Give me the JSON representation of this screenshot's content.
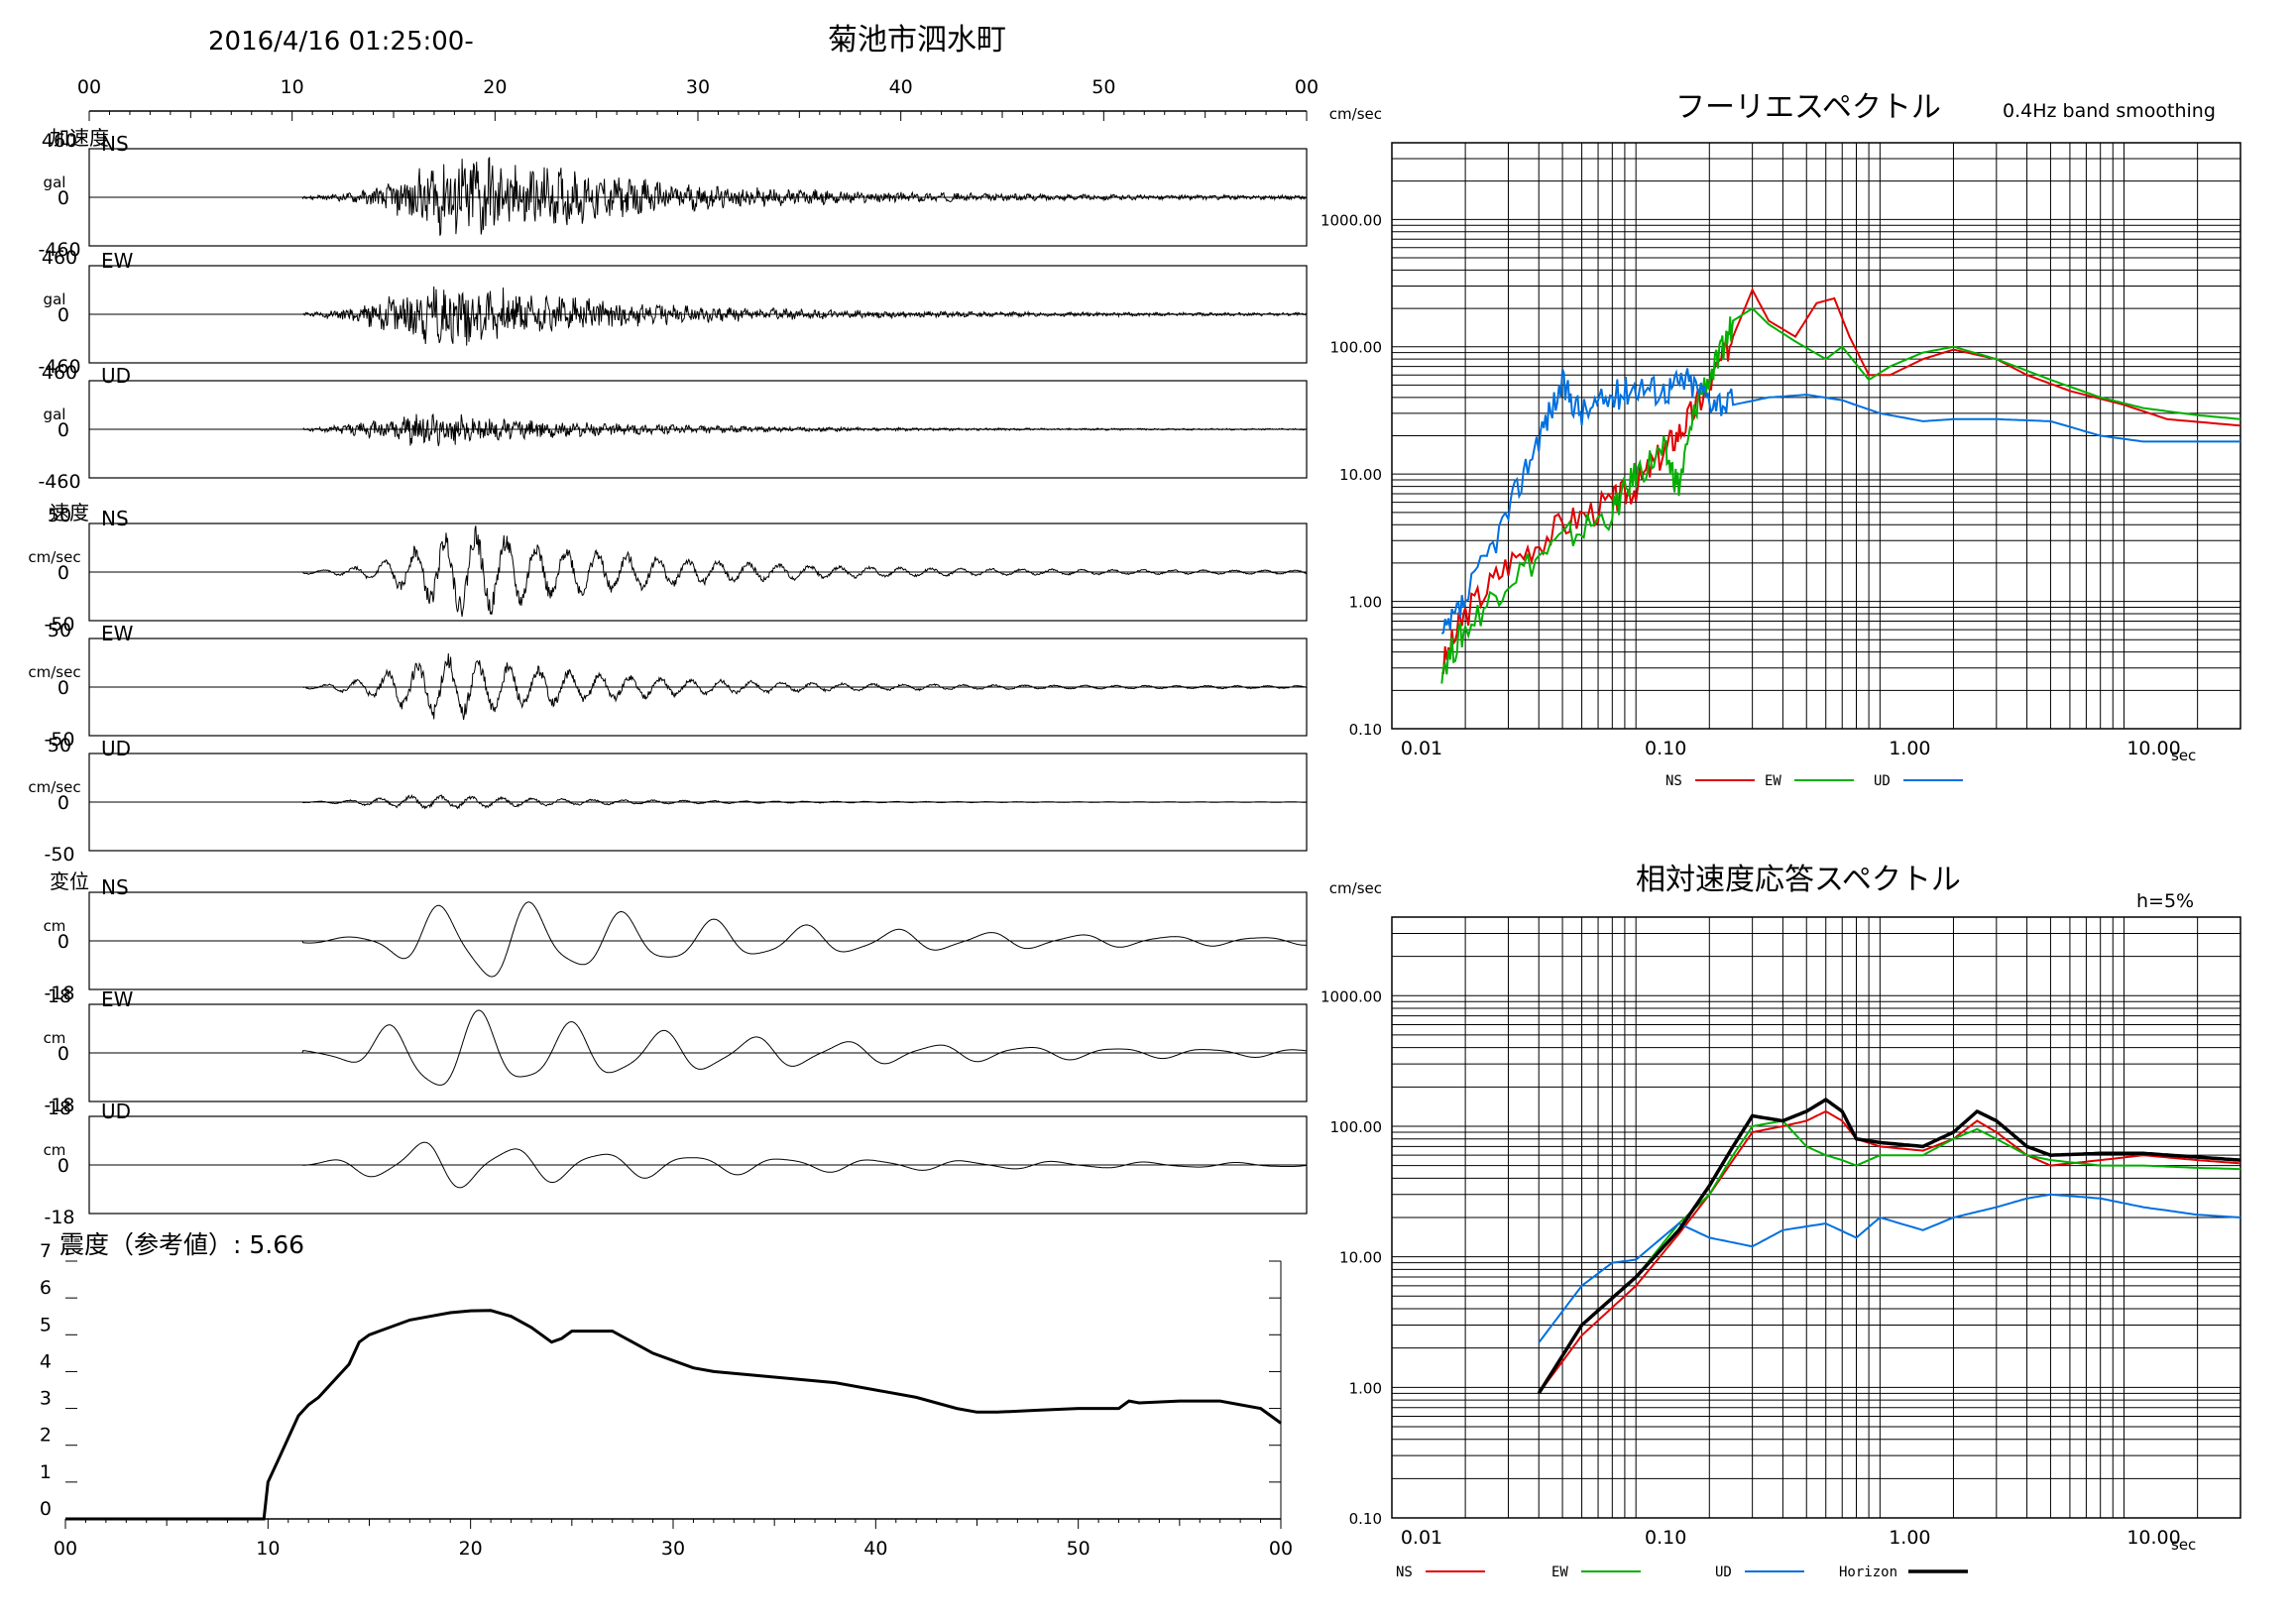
{
  "header": {
    "datetime": "2016/4/16 01:25:00-",
    "station": "菊池市泗水町"
  },
  "colors": {
    "ns": "#e00000",
    "ew": "#00b000",
    "ud": "#0070e0",
    "horizon": "#000000",
    "trace": "#000000"
  },
  "chart_data": [
    {
      "type": "line",
      "id": "waveforms",
      "time_ticks": [
        "00",
        "10",
        "20",
        "30",
        "40",
        "50",
        "00"
      ],
      "panels": [
        {
          "group": "加速度",
          "component": "NS",
          "unit": "gal",
          "ymax": "460",
          "yzero": "0",
          "ymin": "-460",
          "kind": "acc",
          "peak_time": 19.0,
          "amp": 0.95,
          "seed": 11
        },
        {
          "group": "",
          "component": "EW",
          "unit": "gal",
          "ymax": "460",
          "yzero": "0",
          "ymin": "-460",
          "kind": "acc",
          "peak_time": 17.8,
          "amp": 0.7,
          "seed": 23
        },
        {
          "group": "",
          "component": "UD",
          "unit": "gal",
          "ymax": "460",
          "yzero": "0",
          "ymin": "-460",
          "kind": "accud",
          "peak_time": 17.0,
          "amp": 0.35,
          "seed": 37
        },
        {
          "group": "速度",
          "component": "NS",
          "unit": "cm/sec",
          "ymax": "50",
          "yzero": "0",
          "ymin": "-50",
          "kind": "vel",
          "peak_time": 19.0,
          "amp": 0.95,
          "seed": 41
        },
        {
          "group": "",
          "component": "EW",
          "unit": "cm/sec",
          "ymax": "50",
          "yzero": "0",
          "ymin": "-50",
          "kind": "vel",
          "peak_time": 18.0,
          "amp": 0.7,
          "seed": 53
        },
        {
          "group": "",
          "component": "UD",
          "unit": "cm/sec",
          "ymax": "50",
          "yzero": "0",
          "ymin": "-50",
          "kind": "velud",
          "peak_time": 17.0,
          "amp": 0.15,
          "seed": 67
        },
        {
          "group": "変位",
          "component": "NS",
          "unit": "cm",
          "ymax": "",
          "yzero": "0",
          "ymin": "-18",
          "kind": "disp",
          "peak_time": 19.0,
          "amp": 0.9,
          "seed": 71
        },
        {
          "group": "",
          "component": "EW",
          "unit": "cm",
          "ymax": "18",
          "yzero": "0",
          "ymin": "-18",
          "kind": "disp",
          "peak_time": 17.5,
          "amp": 0.9,
          "seed": 83
        },
        {
          "group": "",
          "component": "UD",
          "unit": "cm",
          "ymax": "18",
          "yzero": "0",
          "ymin": "-18",
          "kind": "dispud",
          "peak_time": 17.0,
          "amp": 0.5,
          "seed": 97
        }
      ]
    },
    {
      "type": "line",
      "id": "intensity",
      "title": "震度（参考値）: 5.66",
      "y_ticks": [
        "0",
        "1",
        "2",
        "3",
        "4",
        "5",
        "6",
        "7"
      ],
      "x_ticks": [
        "00",
        "10",
        "20",
        "30",
        "40",
        "50",
        "00"
      ],
      "ylim": [
        0,
        7
      ],
      "xlim": [
        0,
        60
      ],
      "points": [
        [
          0,
          0
        ],
        [
          9.8,
          0
        ],
        [
          10,
          1.0
        ],
        [
          10.5,
          1.6
        ],
        [
          11,
          2.2
        ],
        [
          11.5,
          2.8
        ],
        [
          12,
          3.1
        ],
        [
          12.5,
          3.3
        ],
        [
          13,
          3.6
        ],
        [
          14,
          4.2
        ],
        [
          14.5,
          4.8
        ],
        [
          15,
          5.0
        ],
        [
          16,
          5.2
        ],
        [
          17,
          5.4
        ],
        [
          18,
          5.5
        ],
        [
          19,
          5.6
        ],
        [
          20,
          5.65
        ],
        [
          21,
          5.66
        ],
        [
          22,
          5.5
        ],
        [
          23,
          5.2
        ],
        [
          24,
          4.8
        ],
        [
          24.5,
          4.9
        ],
        [
          25,
          5.1
        ],
        [
          26,
          5.1
        ],
        [
          27,
          5.1
        ],
        [
          28,
          4.8
        ],
        [
          29,
          4.5
        ],
        [
          30,
          4.3
        ],
        [
          31,
          4.1
        ],
        [
          32,
          4.0
        ],
        [
          34,
          3.9
        ],
        [
          36,
          3.8
        ],
        [
          38,
          3.7
        ],
        [
          40,
          3.5
        ],
        [
          42,
          3.3
        ],
        [
          44,
          3.0
        ],
        [
          45,
          2.9
        ],
        [
          46,
          2.9
        ],
        [
          48,
          2.95
        ],
        [
          50,
          3.0
        ],
        [
          52,
          3.0
        ],
        [
          52.5,
          3.2
        ],
        [
          53,
          3.15
        ],
        [
          55,
          3.2
        ],
        [
          57,
          3.2
        ],
        [
          58,
          3.1
        ],
        [
          59,
          3.0
        ],
        [
          60,
          2.6
        ]
      ]
    },
    {
      "type": "line",
      "id": "fourier",
      "title": "フーリエスペクトル",
      "subtitle": "0.4Hz band smoothing",
      "ylabel": "cm/sec",
      "xlabel": "sec",
      "xscale": "log",
      "yscale": "log",
      "xlim": [
        0.01,
        30
      ],
      "ylim": [
        0.1,
        4000
      ],
      "x_ticks": [
        "0.01",
        "0.10",
        "1.00",
        "10.00"
      ],
      "y_ticks": [
        "0.10",
        "1.00",
        "10.00",
        "100.00",
        "1000.00"
      ],
      "legend": [
        "NS",
        "EW",
        "UD"
      ],
      "series": [
        {
          "name": "NS",
          "color": "#e00000",
          "points": [
            [
              0.016,
              0.3
            ],
            [
              0.02,
              0.8
            ],
            [
              0.03,
              2
            ],
            [
              0.05,
              4
            ],
            [
              0.08,
              6
            ],
            [
              0.1,
              8
            ],
            [
              0.13,
              15
            ],
            [
              0.16,
              25
            ],
            [
              0.2,
              50
            ],
            [
              0.25,
              120
            ],
            [
              0.3,
              280
            ],
            [
              0.35,
              160
            ],
            [
              0.45,
              120
            ],
            [
              0.55,
              220
            ],
            [
              0.65,
              240
            ],
            [
              0.75,
              120
            ],
            [
              0.9,
              60
            ],
            [
              1.1,
              60
            ],
            [
              1.5,
              80
            ],
            [
              2,
              95
            ],
            [
              3,
              80
            ],
            [
              4,
              60
            ],
            [
              6,
              45
            ],
            [
              10,
              35
            ],
            [
              15,
              27
            ],
            [
              30,
              24
            ]
          ]
        },
        {
          "name": "EW",
          "color": "#00b000",
          "points": [
            [
              0.016,
              0.3
            ],
            [
              0.02,
              0.6
            ],
            [
              0.03,
              1.5
            ],
            [
              0.05,
              3
            ],
            [
              0.08,
              5
            ],
            [
              0.1,
              10
            ],
            [
              0.13,
              15
            ],
            [
              0.15,
              8
            ],
            [
              0.18,
              40
            ],
            [
              0.22,
              80
            ],
            [
              0.25,
              160
            ],
            [
              0.3,
              200
            ],
            [
              0.35,
              150
            ],
            [
              0.45,
              110
            ],
            [
              0.6,
              80
            ],
            [
              0.7,
              100
            ],
            [
              0.9,
              55
            ],
            [
              1.1,
              70
            ],
            [
              1.5,
              90
            ],
            [
              2,
              100
            ],
            [
              3,
              80
            ],
            [
              5,
              55
            ],
            [
              8,
              40
            ],
            [
              12,
              33
            ],
            [
              20,
              29
            ],
            [
              30,
              27
            ]
          ]
        },
        {
          "name": "UD",
          "color": "#0070e0",
          "points": [
            [
              0.016,
              0.5
            ],
            [
              0.02,
              1.0
            ],
            [
              0.03,
              5
            ],
            [
              0.04,
              20
            ],
            [
              0.05,
              50
            ],
            [
              0.06,
              30
            ],
            [
              0.08,
              40
            ],
            [
              0.1,
              50
            ],
            [
              0.13,
              45
            ],
            [
              0.16,
              55
            ],
            [
              0.2,
              40
            ],
            [
              0.25,
              35
            ],
            [
              0.35,
              40
            ],
            [
              0.5,
              42
            ],
            [
              0.7,
              38
            ],
            [
              1.0,
              30
            ],
            [
              1.5,
              26
            ],
            [
              2,
              27
            ],
            [
              3,
              27
            ],
            [
              5,
              26
            ],
            [
              8,
              20
            ],
            [
              12,
              18
            ],
            [
              20,
              18
            ],
            [
              30,
              18
            ]
          ]
        }
      ]
    },
    {
      "type": "line",
      "id": "response",
      "title": "相対速度応答スペクトル",
      "subtitle": "h=5%",
      "ylabel": "cm/sec",
      "xlabel": "sec",
      "xscale": "log",
      "yscale": "log",
      "xlim": [
        0.01,
        30
      ],
      "ylim": [
        0.1,
        4000
      ],
      "x_ticks": [
        "0.01",
        "0.10",
        "1.00",
        "10.00"
      ],
      "y_ticks": [
        "0.10",
        "1.00",
        "10.00",
        "100.00",
        "1000.00"
      ],
      "legend": [
        "NS",
        "EW",
        "UD",
        "Horizon"
      ],
      "series": [
        {
          "name": "NS",
          "color": "#e00000",
          "points": [
            [
              0.04,
              0.9
            ],
            [
              0.06,
              2.5
            ],
            [
              0.1,
              6
            ],
            [
              0.15,
              15
            ],
            [
              0.2,
              30
            ],
            [
              0.25,
              55
            ],
            [
              0.3,
              90
            ],
            [
              0.4,
              100
            ],
            [
              0.5,
              110
            ],
            [
              0.6,
              130
            ],
            [
              0.7,
              110
            ],
            [
              0.8,
              80
            ],
            [
              1.0,
              70
            ],
            [
              1.5,
              65
            ],
            [
              2,
              80
            ],
            [
              2.5,
              110
            ],
            [
              3,
              90
            ],
            [
              4,
              60
            ],
            [
              5,
              50
            ],
            [
              8,
              55
            ],
            [
              12,
              60
            ],
            [
              20,
              55
            ],
            [
              30,
              52
            ]
          ]
        },
        {
          "name": "EW",
          "color": "#00b000",
          "points": [
            [
              0.04,
              0.9
            ],
            [
              0.06,
              3
            ],
            [
              0.1,
              7
            ],
            [
              0.15,
              18
            ],
            [
              0.2,
              30
            ],
            [
              0.25,
              60
            ],
            [
              0.3,
              100
            ],
            [
              0.4,
              110
            ],
            [
              0.5,
              70
            ],
            [
              0.6,
              60
            ],
            [
              0.7,
              55
            ],
            [
              0.8,
              50
            ],
            [
              1.0,
              60
            ],
            [
              1.5,
              60
            ],
            [
              2,
              80
            ],
            [
              2.5,
              95
            ],
            [
              3,
              80
            ],
            [
              4,
              60
            ],
            [
              5,
              55
            ],
            [
              8,
              50
            ],
            [
              12,
              50
            ],
            [
              20,
              48
            ],
            [
              30,
              47
            ]
          ]
        },
        {
          "name": "UD",
          "color": "#0070e0",
          "points": [
            [
              0.04,
              2.2
            ],
            [
              0.06,
              6
            ],
            [
              0.08,
              9
            ],
            [
              0.1,
              9.5
            ],
            [
              0.15,
              18
            ],
            [
              0.2,
              14
            ],
            [
              0.3,
              12
            ],
            [
              0.4,
              16
            ],
            [
              0.6,
              18
            ],
            [
              0.8,
              14
            ],
            [
              1.0,
              20
            ],
            [
              1.5,
              16
            ],
            [
              2,
              20
            ],
            [
              3,
              24
            ],
            [
              4,
              28
            ],
            [
              5,
              30
            ],
            [
              8,
              28
            ],
            [
              12,
              24
            ],
            [
              20,
              21
            ],
            [
              30,
              20
            ]
          ]
        },
        {
          "name": "Horizon",
          "color": "#000000",
          "points": [
            [
              0.04,
              0.9
            ],
            [
              0.06,
              3
            ],
            [
              0.1,
              7
            ],
            [
              0.15,
              16
            ],
            [
              0.2,
              35
            ],
            [
              0.25,
              70
            ],
            [
              0.3,
              120
            ],
            [
              0.4,
              110
            ],
            [
              0.5,
              130
            ],
            [
              0.6,
              160
            ],
            [
              0.7,
              130
            ],
            [
              0.8,
              80
            ],
            [
              1.0,
              75
            ],
            [
              1.5,
              70
            ],
            [
              2,
              90
            ],
            [
              2.5,
              130
            ],
            [
              3,
              110
            ],
            [
              4,
              70
            ],
            [
              5,
              60
            ],
            [
              8,
              62
            ],
            [
              12,
              62
            ],
            [
              20,
              58
            ],
            [
              30,
              55
            ]
          ]
        }
      ]
    }
  ]
}
